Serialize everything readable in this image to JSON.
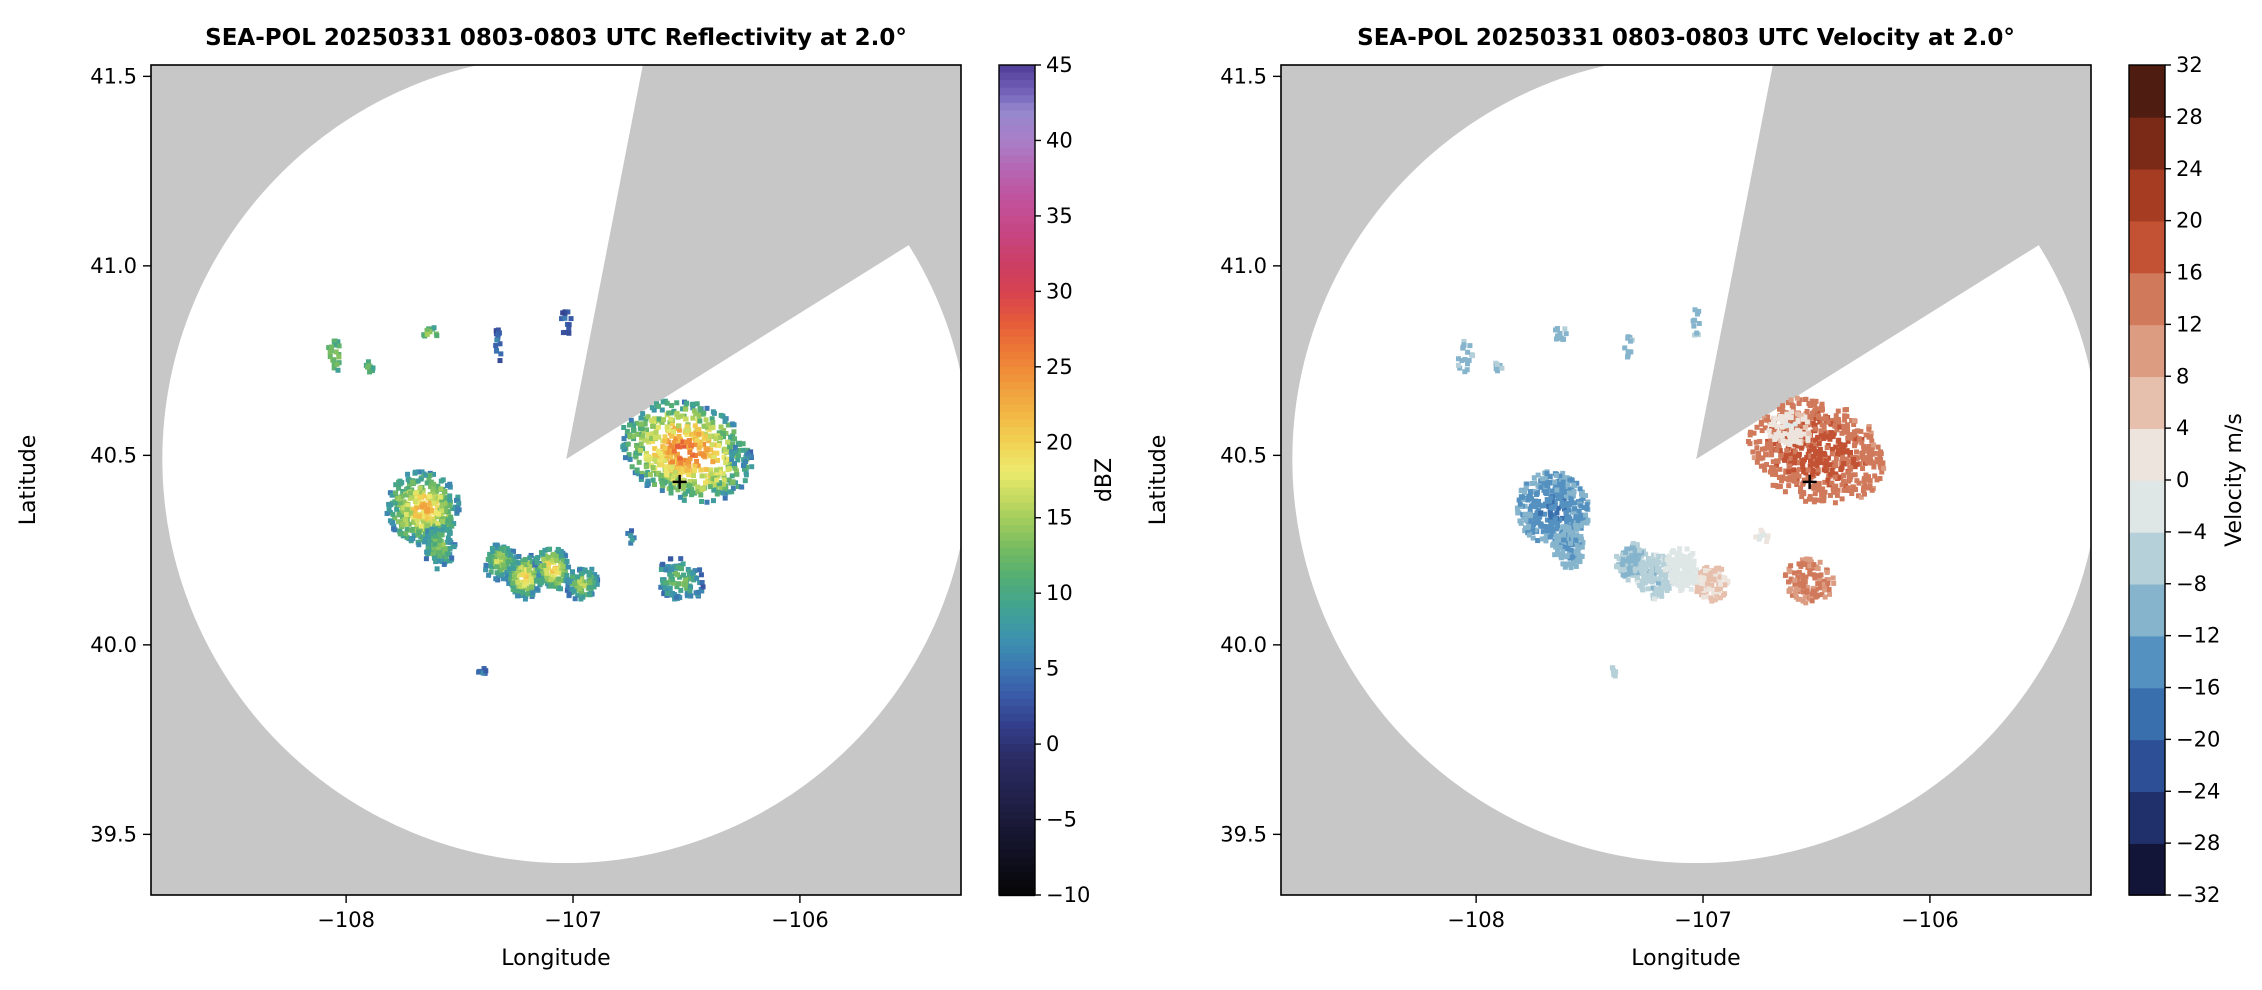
{
  "figure": {
    "background": "#ffffff",
    "outside_range_color": "#c7c7c7",
    "coverage_fill": "#ffffff"
  },
  "chart_data": [
    {
      "type": "radar_ppi",
      "field": "reflectivity",
      "title": "SEA-POL 20250331 0803-0803 UTC Reflectivity at 2.0°",
      "xlabel": "Longitude",
      "ylabel": "Latitude",
      "xlim": [
        -108.86,
        -105.29
      ],
      "ylim": [
        39.34,
        41.53
      ],
      "xticks": [
        -108,
        -107,
        -106
      ],
      "xtick_labels": [
        "−108",
        "−107",
        "−106"
      ],
      "yticks": [
        39.5,
        40.0,
        40.5,
        41.0,
        41.5
      ],
      "ytick_labels": [
        "39.5",
        "40.0",
        "40.5",
        "41.0",
        "41.5"
      ],
      "grid": false,
      "radar_center": {
        "lon": -107.03,
        "lat": 40.49
      },
      "coverage_radius_deg_lon": 1.78,
      "missing_sector_azimuth_deg": [
        11,
        58
      ],
      "site_marker": {
        "lon": -106.53,
        "lat": 40.43,
        "symbol": "+",
        "color": "#000000"
      },
      "colorbar": {
        "label": "dBZ",
        "min": -10,
        "max": 45,
        "tick_step": 5,
        "style": "continuous",
        "tick_labels": [
          "−10",
          "−5",
          "0",
          "5",
          "10",
          "15",
          "20",
          "25",
          "30",
          "35",
          "40",
          "45"
        ]
      },
      "colormap_stops": [
        [
          -10,
          "#060606"
        ],
        [
          -7,
          "#121226"
        ],
        [
          -4,
          "#1f1f45"
        ],
        [
          -1,
          "#2b2b63"
        ],
        [
          1,
          "#323c86"
        ],
        [
          3,
          "#3a57a5"
        ],
        [
          5,
          "#3c76b4"
        ],
        [
          7,
          "#3e93ae"
        ],
        [
          9,
          "#41a392"
        ],
        [
          11,
          "#52ad74"
        ],
        [
          13,
          "#78bc62"
        ],
        [
          15,
          "#a6ce5c"
        ],
        [
          17,
          "#d4e063"
        ],
        [
          18,
          "#ecea6e"
        ],
        [
          20,
          "#f1d252"
        ],
        [
          22,
          "#f2b544"
        ],
        [
          24,
          "#f0983c"
        ],
        [
          26,
          "#ed7a35"
        ],
        [
          28,
          "#e55a3a"
        ],
        [
          30,
          "#d64250"
        ],
        [
          32,
          "#cb3f68"
        ],
        [
          34,
          "#c64683"
        ],
        [
          36,
          "#c1529c"
        ],
        [
          38,
          "#b765b2"
        ],
        [
          40,
          "#a87fc8"
        ],
        [
          42,
          "#9488cd"
        ],
        [
          43,
          "#7867bd"
        ],
        [
          45,
          "#4f3b97"
        ]
      ],
      "echoes": [
        {
          "lon": -106.5,
          "lat": 40.51,
          "rx": 0.3,
          "ry": 0.13,
          "rot": 20,
          "n": 700,
          "core": 27,
          "edge": 7,
          "noise": 7,
          "seed": 101
        },
        {
          "lon": -107.66,
          "lat": 40.36,
          "rx": 0.16,
          "ry": 0.1,
          "rot": -35,
          "n": 430,
          "core": 22,
          "edge": 7,
          "noise": 6,
          "seed": 102
        },
        {
          "lon": -107.59,
          "lat": 40.26,
          "rx": 0.07,
          "ry": 0.06,
          "rot": 0,
          "n": 120,
          "core": 14,
          "edge": 6,
          "noise": 5,
          "seed": 103
        },
        {
          "lon": -107.32,
          "lat": 40.22,
          "rx": 0.07,
          "ry": 0.05,
          "rot": 20,
          "n": 120,
          "core": 17,
          "edge": 6,
          "noise": 5,
          "seed": 104
        },
        {
          "lon": -107.21,
          "lat": 40.18,
          "rx": 0.08,
          "ry": 0.06,
          "rot": 10,
          "n": 160,
          "core": 21,
          "edge": 6,
          "noise": 5,
          "seed": 105
        },
        {
          "lon": -107.09,
          "lat": 40.2,
          "rx": 0.08,
          "ry": 0.06,
          "rot": -15,
          "n": 160,
          "core": 22,
          "edge": 6,
          "noise": 5,
          "seed": 106
        },
        {
          "lon": -106.96,
          "lat": 40.16,
          "rx": 0.07,
          "ry": 0.05,
          "rot": 15,
          "n": 120,
          "core": 16,
          "edge": 5,
          "noise": 5,
          "seed": 107
        },
        {
          "lon": -106.53,
          "lat": 40.17,
          "rx": 0.11,
          "ry": 0.06,
          "rot": 25,
          "n": 140,
          "core": 13,
          "edge": 5,
          "noise": 5,
          "seed": 108
        },
        {
          "lon": -108.05,
          "lat": 40.76,
          "rx": 0.035,
          "ry": 0.045,
          "rot": 0,
          "n": 26,
          "core": 14,
          "edge": 10,
          "noise": 4,
          "seed": 109
        },
        {
          "lon": -107.9,
          "lat": 40.73,
          "rx": 0.02,
          "ry": 0.02,
          "rot": 0,
          "n": 10,
          "core": 12,
          "edge": 9,
          "noise": 3,
          "seed": 110
        },
        {
          "lon": -107.63,
          "lat": 40.82,
          "rx": 0.04,
          "ry": 0.02,
          "rot": 0,
          "n": 14,
          "core": 15,
          "edge": 10,
          "noise": 4,
          "seed": 111
        },
        {
          "lon": -107.33,
          "lat": 40.79,
          "rx": 0.02,
          "ry": 0.045,
          "rot": 0,
          "n": 16,
          "core": 6,
          "edge": 3,
          "noise": 3,
          "seed": 112
        },
        {
          "lon": -107.03,
          "lat": 40.85,
          "rx": 0.025,
          "ry": 0.035,
          "rot": 0,
          "n": 14,
          "core": 5,
          "edge": 2,
          "noise": 3,
          "seed": 113
        },
        {
          "lon": -107.4,
          "lat": 39.93,
          "rx": 0.018,
          "ry": 0.018,
          "rot": 0,
          "n": 8,
          "core": 6,
          "edge": 3,
          "noise": 3,
          "seed": 114
        },
        {
          "lon": -106.26,
          "lat": 40.5,
          "rx": 0.05,
          "ry": 0.03,
          "rot": 0,
          "n": 18,
          "core": 10,
          "edge": 5,
          "noise": 4,
          "seed": 115
        },
        {
          "lon": -106.74,
          "lat": 40.28,
          "rx": 0.03,
          "ry": 0.025,
          "rot": 0,
          "n": 12,
          "core": 8,
          "edge": 4,
          "noise": 4,
          "seed": 116
        }
      ]
    },
    {
      "type": "radar_ppi",
      "field": "velocity",
      "title": "SEA-POL 20250331 0803-0803 UTC Velocity at 2.0°",
      "xlabel": "Longitude",
      "ylabel": "Latitude",
      "xlim": [
        -108.86,
        -105.29
      ],
      "ylim": [
        39.34,
        41.53
      ],
      "xticks": [
        -108,
        -107,
        -106
      ],
      "xtick_labels": [
        "−108",
        "−107",
        "−106"
      ],
      "yticks": [
        39.5,
        40.0,
        40.5,
        41.0,
        41.5
      ],
      "ytick_labels": [
        "39.5",
        "40.0",
        "40.5",
        "41.0",
        "41.5"
      ],
      "grid": false,
      "radar_center": {
        "lon": -107.03,
        "lat": 40.49
      },
      "coverage_radius_deg_lon": 1.78,
      "missing_sector_azimuth_deg": [
        11,
        58
      ],
      "site_marker": {
        "lon": -106.53,
        "lat": 40.43,
        "symbol": "+",
        "color": "#000000"
      },
      "colorbar": {
        "label": "Velocity m/s",
        "min": -32,
        "max": 32,
        "tick_step": 4,
        "style": "discrete",
        "tick_labels": [
          "−32",
          "−28",
          "−24",
          "−20",
          "−16",
          "−12",
          "−8",
          "−4",
          "0",
          "4",
          "8",
          "12",
          "16",
          "20",
          "24",
          "28",
          "32"
        ]
      },
      "colormap_bins": {
        "min": -32,
        "step": 4,
        "colors": [
          "#131538",
          "#20306b",
          "#2c4f96",
          "#3a6fae",
          "#5591c0",
          "#85b4cc",
          "#b5d0d8",
          "#dfe6e6",
          "#ece4dd",
          "#e7c0ad",
          "#dc9c82",
          "#d0795b",
          "#c25233",
          "#a63c22",
          "#7c2a18",
          "#4e1c10"
        ]
      },
      "echoes": [
        {
          "lon": -106.5,
          "lat": 40.51,
          "rx": 0.31,
          "ry": 0.135,
          "rot": 20,
          "n": 750,
          "core": 18,
          "edge": 13,
          "noise": 4,
          "seed": 201
        },
        {
          "lon": -106.62,
          "lat": 40.57,
          "rx": 0.1,
          "ry": 0.05,
          "rot": 20,
          "n": 90,
          "core": 1,
          "edge": 3,
          "noise": 4,
          "seed": 202
        },
        {
          "lon": -107.66,
          "lat": 40.36,
          "rx": 0.16,
          "ry": 0.1,
          "rot": -35,
          "n": 430,
          "core": -16,
          "edge": -11,
          "noise": 4,
          "seed": 203
        },
        {
          "lon": -107.59,
          "lat": 40.26,
          "rx": 0.07,
          "ry": 0.06,
          "rot": 0,
          "n": 120,
          "core": -13,
          "edge": -10,
          "noise": 3,
          "seed": 204
        },
        {
          "lon": -107.32,
          "lat": 40.22,
          "rx": 0.07,
          "ry": 0.05,
          "rot": 20,
          "n": 120,
          "core": -10,
          "edge": -7,
          "noise": 3,
          "seed": 205
        },
        {
          "lon": -107.21,
          "lat": 40.18,
          "rx": 0.08,
          "ry": 0.06,
          "rot": 10,
          "n": 160,
          "core": -8,
          "edge": -5,
          "noise": 3,
          "seed": 206
        },
        {
          "lon": -107.09,
          "lat": 40.2,
          "rx": 0.08,
          "ry": 0.06,
          "rot": -15,
          "n": 160,
          "core": -3,
          "edge": -1,
          "noise": 3,
          "seed": 207
        },
        {
          "lon": -106.96,
          "lat": 40.16,
          "rx": 0.07,
          "ry": 0.05,
          "rot": 15,
          "n": 120,
          "core": 3,
          "edge": 5,
          "noise": 3,
          "seed": 208
        },
        {
          "lon": -106.53,
          "lat": 40.17,
          "rx": 0.11,
          "ry": 0.06,
          "rot": 25,
          "n": 140,
          "core": 14,
          "edge": 11,
          "noise": 3,
          "seed": 209
        },
        {
          "lon": -108.05,
          "lat": 40.76,
          "rx": 0.035,
          "ry": 0.045,
          "rot": 0,
          "n": 26,
          "core": -11,
          "edge": -8,
          "noise": 3,
          "seed": 210
        },
        {
          "lon": -107.9,
          "lat": 40.73,
          "rx": 0.02,
          "ry": 0.02,
          "rot": 0,
          "n": 10,
          "core": -10,
          "edge": -8,
          "noise": 2,
          "seed": 211
        },
        {
          "lon": -107.63,
          "lat": 40.82,
          "rx": 0.04,
          "ry": 0.02,
          "rot": 0,
          "n": 14,
          "core": -10,
          "edge": -8,
          "noise": 2,
          "seed": 212
        },
        {
          "lon": -107.33,
          "lat": 40.79,
          "rx": 0.02,
          "ry": 0.045,
          "rot": 0,
          "n": 16,
          "core": -11,
          "edge": -8,
          "noise": 2,
          "seed": 213
        },
        {
          "lon": -107.03,
          "lat": 40.85,
          "rx": 0.025,
          "ry": 0.035,
          "rot": 0,
          "n": 14,
          "core": -10,
          "edge": -8,
          "noise": 2,
          "seed": 214
        },
        {
          "lon": -107.4,
          "lat": 39.93,
          "rx": 0.018,
          "ry": 0.018,
          "rot": 0,
          "n": 8,
          "core": -7,
          "edge": -5,
          "noise": 2,
          "seed": 215
        },
        {
          "lon": -106.26,
          "lat": 40.5,
          "rx": 0.05,
          "ry": 0.03,
          "rot": 0,
          "n": 18,
          "core": 15,
          "edge": 12,
          "noise": 3,
          "seed": 216
        },
        {
          "lon": -106.74,
          "lat": 40.28,
          "rx": 0.03,
          "ry": 0.025,
          "rot": 0,
          "n": 12,
          "core": -2,
          "edge": 1,
          "noise": 3,
          "seed": 217
        }
      ]
    }
  ]
}
